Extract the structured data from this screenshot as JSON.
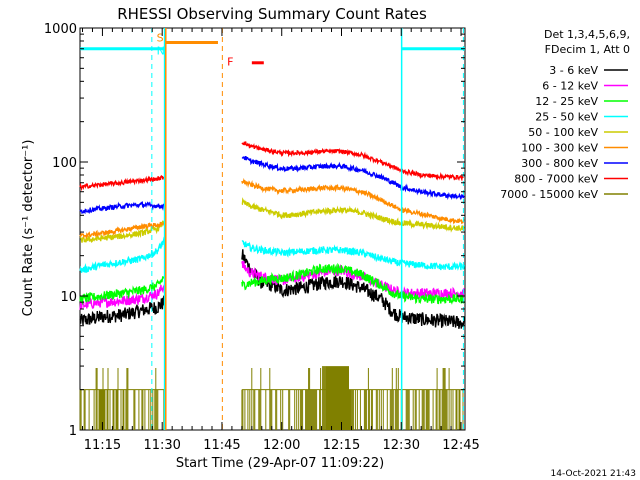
{
  "chart_data": {
    "type": "line",
    "title": "RHESSI Observing Summary Count Rates",
    "ylabel": "Count Rate (s⁻¹ detector⁻¹)",
    "xlabel": "Start Time (29-Apr-07 11:09:22)",
    "footer_date": "14-Oct-2021 21:43",
    "y_scale": "log",
    "ylim": [
      1,
      1000
    ],
    "y_tick_labels": [
      "1",
      "10",
      "100",
      "1000"
    ],
    "xlim_minutes": [
      669.37,
      766.0
    ],
    "x_ticks": [
      {
        "m": 675,
        "label": "11:15"
      },
      {
        "m": 690,
        "label": "11:30"
      },
      {
        "m": 705,
        "label": "11:45"
      },
      {
        "m": 720,
        "label": "12:00"
      },
      {
        "m": 735,
        "label": "12:15"
      },
      {
        "m": 750,
        "label": "12:30"
      },
      {
        "m": 765,
        "label": "12:45"
      }
    ],
    "legend_header": [
      "Det 1,3,4,5,6,9,",
      "FDecim 1, Att 0"
    ],
    "data_gap_minutes": [
      690.6,
      710.0
    ],
    "series": [
      {
        "name": "3 - 6 keV",
        "color": "#000000",
        "x": [
          669.4,
          675,
          680,
          685,
          689,
          690.5,
          710.2,
          712,
          715,
          718,
          720,
          725,
          730,
          735,
          740,
          745,
          748,
          750,
          755,
          760,
          765
        ],
        "y": [
          6.5,
          7,
          7.2,
          7.8,
          8.3,
          9,
          20,
          16,
          12.5,
          12,
          11,
          11.5,
          12.5,
          13,
          11.5,
          9.5,
          7.5,
          7,
          6.7,
          6.5,
          6.3
        ]
      },
      {
        "name": "6 - 12 keV",
        "color": "#ff00ff",
        "x": [
          669.4,
          675,
          680,
          685,
          689,
          690.5,
          710.2,
          712,
          715,
          718,
          720,
          725,
          730,
          735,
          740,
          745,
          748,
          750,
          755,
          760,
          765
        ],
        "y": [
          8.5,
          9,
          9.2,
          9.6,
          10.5,
          12,
          17,
          15,
          14,
          13.5,
          13,
          14,
          15,
          15.5,
          14,
          12,
          11,
          10.5,
          10.5,
          10.5,
          10.5
        ]
      },
      {
        "name": "12 - 25 keV",
        "color": "#00ff00",
        "x": [
          669.4,
          675,
          680,
          685,
          689,
          690.5,
          710.2,
          712,
          715,
          718,
          720,
          725,
          730,
          735,
          740,
          745,
          748,
          750,
          755,
          760,
          765
        ],
        "y": [
          9.5,
          10,
          10.5,
          11,
          12,
          14,
          12,
          12.5,
          13,
          13.5,
          13.5,
          14.5,
          16,
          16,
          14.5,
          12,
          10.5,
          10,
          9.5,
          9.5,
          9.5
        ]
      },
      {
        "name": "25 - 50 keV",
        "color": "#00ffff",
        "x": [
          669.4,
          675,
          680,
          685,
          689,
          690.5,
          710.2,
          712,
          715,
          718,
          720,
          725,
          730,
          735,
          740,
          745,
          748,
          750,
          755,
          760,
          765
        ],
        "y": [
          15.5,
          17,
          18,
          19,
          22,
          26,
          25,
          23,
          22,
          21.5,
          21,
          21.5,
          22,
          22,
          21,
          19,
          18,
          17.5,
          17,
          16.5,
          16.5
        ]
      },
      {
        "name": "50 - 100 keV",
        "color": "#cccc00",
        "x": [
          669.4,
          675,
          680,
          685,
          689,
          690.5,
          710.2,
          712,
          715,
          718,
          720,
          725,
          730,
          735,
          740,
          745,
          748,
          750,
          755,
          760,
          765
        ],
        "y": [
          26,
          27,
          28,
          29.5,
          32,
          36,
          50,
          47,
          44,
          42,
          40,
          41,
          43,
          44,
          42,
          38,
          36,
          35,
          34,
          33,
          32
        ]
      },
      {
        "name": "100 - 300 keV",
        "color": "#ff8c00",
        "x": [
          669.4,
          675,
          680,
          685,
          689,
          690.5,
          710.2,
          712,
          715,
          718,
          720,
          725,
          730,
          735,
          740,
          745,
          748,
          750,
          755,
          760,
          765
        ],
        "y": [
          28,
          29.5,
          31,
          33,
          34,
          34,
          72,
          68,
          64,
          62,
          61,
          62,
          64,
          64,
          60,
          52,
          47,
          44,
          41,
          38,
          36
        ]
      },
      {
        "name": "300 - 800 keV",
        "color": "#0000ff",
        "x": [
          669.4,
          675,
          680,
          685,
          689,
          690.5,
          710.2,
          712,
          715,
          718,
          720,
          725,
          730,
          735,
          740,
          745,
          748,
          750,
          755,
          760,
          765
        ],
        "y": [
          43,
          45,
          47,
          48,
          47,
          47,
          110,
          102,
          97,
          92,
          89,
          90,
          93,
          93,
          87,
          77,
          70,
          65,
          60,
          57,
          55
        ]
      },
      {
        "name": "800 - 7000 keV",
        "color": "#ff0000",
        "x": [
          669.4,
          675,
          680,
          685,
          689,
          690.5,
          710.2,
          712,
          715,
          718,
          720,
          725,
          730,
          735,
          740,
          745,
          748,
          750,
          755,
          760,
          765
        ],
        "y": [
          65,
          68,
          70,
          73,
          75,
          77,
          140,
          132,
          125,
          120,
          117,
          117,
          120,
          120,
          113,
          100,
          92,
          86,
          80,
          78,
          77
        ]
      },
      {
        "name": "7000 - 15000 keV",
        "color": "#808000",
        "x": [
          669.4,
          690.5,
          710.2,
          765
        ],
        "y": [
          2,
          2,
          2,
          2
        ]
      }
    ],
    "attenuator_bars": [
      {
        "x0": 669.4,
        "x1": 687.4,
        "y": 700,
        "color": "#00ffff"
      },
      {
        "x0": 687.4,
        "x1": 690.6,
        "y": 700,
        "color": "#00ffff"
      },
      {
        "x0": 750.0,
        "x1": 766.0,
        "y": 700,
        "color": "#00ffff"
      },
      {
        "x0": 690.9,
        "x1": 704.0,
        "y": 780,
        "color": "#ff8c00"
      },
      {
        "x0": 712.5,
        "x1": 715.5,
        "y": 550,
        "color": "#ff0000"
      }
    ],
    "vertical_markers": [
      {
        "m": 687.4,
        "color": "#00ffff",
        "style": "dashed"
      },
      {
        "m": 690.6,
        "color": "#00ffff",
        "style": "solid"
      },
      {
        "m": 690.9,
        "color": "#ff8c00",
        "style": "solid"
      },
      {
        "m": 705.1,
        "color": "#ff8c00",
        "style": "dashed"
      },
      {
        "m": 750.1,
        "color": "#00ffff",
        "style": "solid"
      },
      {
        "m": 765.6,
        "color": "#00ffff",
        "style": "dashed"
      }
    ],
    "annotations": [
      {
        "text": "S",
        "m": 688.6,
        "y": 850,
        "color": "#ff8c00"
      },
      {
        "text": "N",
        "m": 688.6,
        "y": 680,
        "color": "#00ffff"
      },
      {
        "text": "F",
        "m": 706.3,
        "y": 560,
        "color": "#ff0000"
      }
    ]
  }
}
